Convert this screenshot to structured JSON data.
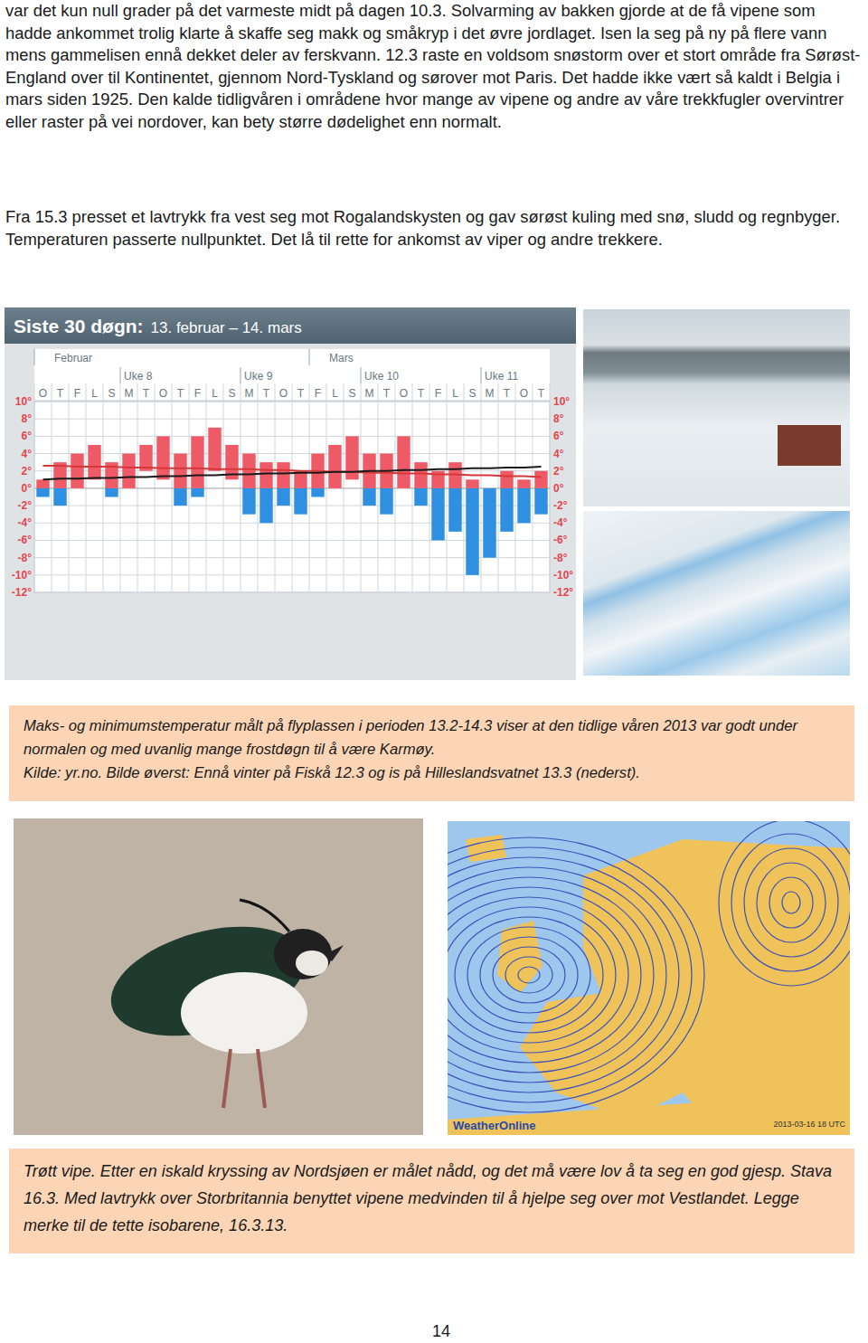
{
  "paragraphs": [
    "var det kun null grader på det varmeste midt på dagen 10.3. Solvarming av bakken gjorde at de få vipene som hadde ankommet trolig klarte å skaffe seg makk og småkryp i det øvre jordlaget. Isen la seg på ny på flere vann mens gammelisen ennå dekket deler av ferskvann. 12.3 raste en voldsom snøstorm over et stort område fra Sørøst-England over til Kontinentet, gjennom Nord-Tyskland og sørover mot Paris. Det hadde ikke vært så kaldt i Belgia i mars siden 1925. Den kalde tidligvåren i områdene hvor mange av vipene og andre av våre trekkfugler overvintrer eller raster på vei nordover, kan bety større dødelighet enn normalt.",
    "Fra 15.3 presset et lavtrykk fra vest seg mot Rogalandskysten og gav sørøst kuling med snø, sludd og regnbyger. Temperaturen passerte nullpunktet. Det lå til rette for ankomst av viper og andre trekkere."
  ],
  "chart_data": {
    "type": "bar",
    "title": "Siste 30 døgn:",
    "subtitle": "13. februar – 14. mars",
    "month_labels": [
      {
        "label": "Februar",
        "index": 0
      },
      {
        "label": "Mars",
        "index": 16
      }
    ],
    "week_labels": [
      {
        "label": "Uke 8",
        "index": 5
      },
      {
        "label": "Uke 9",
        "index": 12
      },
      {
        "label": "Uke 10",
        "index": 19
      },
      {
        "label": "Uke 11",
        "index": 26
      }
    ],
    "categories": [
      "O",
      "T",
      "F",
      "L",
      "S",
      "M",
      "T",
      "O",
      "T",
      "F",
      "L",
      "S",
      "M",
      "T",
      "O",
      "T",
      "F",
      "L",
      "S",
      "M",
      "T",
      "O",
      "T",
      "F",
      "L",
      "S",
      "M",
      "T",
      "O",
      "T"
    ],
    "series": [
      {
        "color": "#ef5a67",
        "values": [
          1,
          3,
          4,
          5,
          3,
          4,
          5,
          6,
          4,
          6,
          7,
          5,
          4,
          3,
          3,
          2,
          4,
          5,
          6,
          4,
          4,
          6,
          3,
          2,
          3,
          1,
          0,
          2,
          1,
          2
        ]
      },
      {
        "color": "#2f8fe0",
        "values": [
          -1,
          -2,
          0,
          1,
          -1,
          0,
          2,
          1,
          -2,
          -1,
          2,
          1,
          -3,
          -4,
          -2,
          -3,
          -1,
          0,
          1,
          -2,
          -3,
          0,
          -2,
          -6,
          -5,
          -10,
          -8,
          -5,
          -4,
          -3
        ]
      },
      {
        "type": "line",
        "color": "#d43838",
        "values": [
          2.6,
          2.6,
          2.5,
          2.5,
          2.5,
          2.4,
          2.4,
          2.3,
          2.3,
          2.3,
          2.2,
          2.2,
          2.2,
          2.1,
          2.1,
          2.0,
          2.0,
          1.9,
          1.9,
          1.8,
          1.8,
          1.7,
          1.7,
          1.6,
          1.6,
          1.5,
          1.5,
          1.4,
          1.4,
          1.3
        ]
      },
      {
        "type": "line",
        "color": "#1a1a1a",
        "values": [
          1.0,
          1.1,
          1.1,
          1.2,
          1.2,
          1.3,
          1.3,
          1.4,
          1.4,
          1.5,
          1.5,
          1.6,
          1.6,
          1.7,
          1.7,
          1.8,
          1.8,
          1.9,
          1.9,
          2.0,
          2.0,
          2.1,
          2.1,
          2.2,
          2.2,
          2.3,
          2.3,
          2.4,
          2.4,
          2.5
        ]
      }
    ],
    "ylim": [
      -12,
      10
    ],
    "yticks": [
      {
        "value": 10,
        "label": "10°"
      },
      {
        "value": 8,
        "label": "8°"
      },
      {
        "value": 6,
        "label": "6°"
      },
      {
        "value": 4,
        "label": "4°"
      },
      {
        "value": 2,
        "label": "2°"
      },
      {
        "value": 0,
        "label": "0°"
      },
      {
        "value": -2,
        "label": "-2°"
      },
      {
        "value": -4,
        "label": "-4°"
      },
      {
        "value": -6,
        "label": "-6°"
      },
      {
        "value": -8,
        "label": "-8°"
      },
      {
        "value": -10,
        "label": "-10°"
      },
      {
        "value": -12,
        "label": "-12°"
      }
    ],
    "grid": true
  },
  "captions": [
    [
      "Maks- og minimumstemperatur målt på flyplassen i perioden 13.2-14.3 viser at den tidlige våren 2013 var godt under normalen og med uvanlig mange frostdøgn til å være Karmøy.",
      "Kilde: yr.no.  Bilde øverst: Ennå vinter på Fiskå 12.3 og is på Hilleslandsvatnet 13.3 (nederst)."
    ],
    [
      "Trøtt vipe. Etter en iskald kryssing av Nordsjøen er målet nådd, og det må være lov å ta seg en god gjesp. Stava 16.3. Med lavtrykk over Storbritannia benyttet vipene medvinden til å hjelpe seg over mot Vestlandet. Legge merke til de tette isobarene, 16.3.13."
    ]
  ],
  "map": {
    "brand": "WeatherOnline",
    "timestamp": "2013-03-16 18 UTC"
  },
  "page_number": "14"
}
